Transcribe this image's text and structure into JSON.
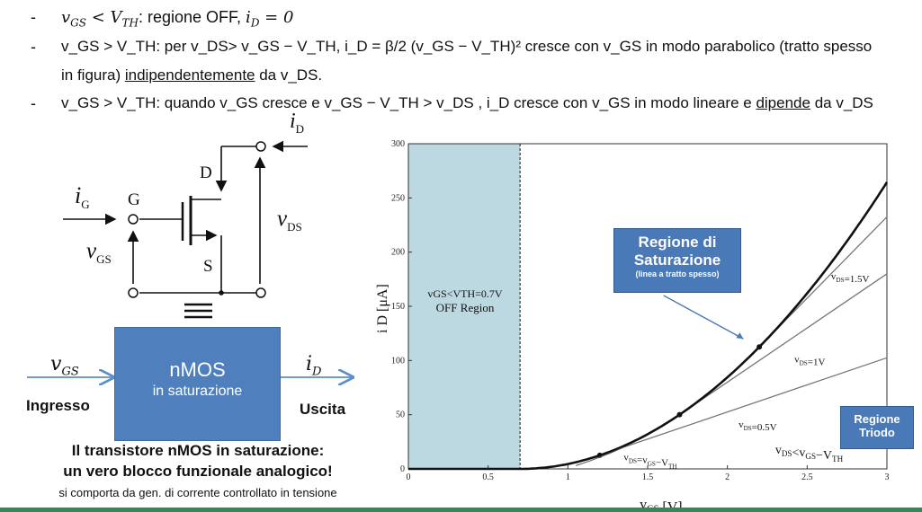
{
  "bullets": [
    {
      "dash": "-",
      "math1": "v",
      "sub1": "GS",
      "op": " < ",
      "math2": "V",
      "sub2": "TH",
      "text": ": regione OFF, ",
      "math3": "i",
      "sub3": "D",
      "tail": " = 0"
    },
    {
      "dash": "-",
      "line1": "v_GS > V_TH: per v_DS> v_GS − V_TH, i_D = β/2 (v_GS − V_TH)² cresce con v_GS in modo parabolico (tratto spesso",
      "line2_pre": "in figura) ",
      "line2_u": "indipendentemente",
      "line2_post": " da  v_DS."
    },
    {
      "dash": "-",
      "line": "v_GS > V_TH: quando v_GS cresce e v_GS − V_TH > v_DS , i_D cresce con v_GS in modo lineare e ",
      "u": "dipende",
      "post": " da  v_DS"
    }
  ],
  "circuit": {
    "iD": "i",
    "iD_sub": "D",
    "iG": "i",
    "iG_sub": "G",
    "G": "G",
    "D": "D",
    "S": "S",
    "vDS": "v",
    "vDS_sub": "DS",
    "vGS": "v",
    "vGS_sub": "GS",
    "equiv": "≡"
  },
  "block": {
    "title": "nMOS",
    "subtitle": "in saturazione",
    "in_var": "v",
    "in_sub": "GS",
    "out_var": "i",
    "out_sub": "D",
    "in_label": "Ingresso",
    "out_label": "Uscita"
  },
  "caption": {
    "line1": "Il transistore nMOS in saturazione:",
    "line2": "un vero blocco funzionale analogico!",
    "line3": "si comporta da gen. di corrente controllato in tensione"
  },
  "chart_data": {
    "type": "line",
    "xlabel": "v_GS [V]",
    "ylabel": "i_D [μA]",
    "xlim": [
      0,
      3
    ],
    "ylim": [
      0,
      300
    ],
    "xticks": [
      0,
      0.5,
      1,
      1.5,
      2,
      2.5,
      3
    ],
    "xtick_labels": [
      "0",
      "0.5",
      "1",
      "1.5",
      "2",
      "2.5",
      "3"
    ],
    "yticks": [
      0,
      50,
      100,
      150,
      200,
      250,
      300
    ],
    "ytick_labels": [
      "0",
      "50",
      "100",
      "150",
      "200",
      "250",
      "300"
    ],
    "vth": 0.7,
    "off_region": {
      "x": [
        0,
        0.7
      ],
      "label_line1": "v_GS<V_TH=0.7V",
      "label_line2": "OFF Region",
      "color": "#bcd9e2"
    },
    "series": [
      {
        "name": "saturation",
        "formula": "50*(x-0.7)^2 for x>0.7",
        "x": [
          0,
          0.7,
          1.0,
          1.5,
          2.0,
          2.5,
          3.0
        ],
        "y": [
          0,
          0,
          4.5,
          32,
          84.5,
          162,
          264.5
        ]
      },
      {
        "name": "v_DS=0.5V",
        "x": [
          1.2,
          3.0
        ],
        "y": [
          12.5,
          102.5
        ]
      },
      {
        "name": "v_DS=1V",
        "x": [
          1.7,
          3.0
        ],
        "y": [
          50,
          180
        ]
      },
      {
        "name": "v_DS=1.5V",
        "x": [
          2.2,
          3.0
        ],
        "y": [
          112.5,
          232.5
        ]
      }
    ],
    "tangent_points": [
      {
        "x": 1.2,
        "y": 12.5
      },
      {
        "x": 1.7,
        "y": 50
      },
      {
        "x": 2.2,
        "y": 112.5
      }
    ],
    "annotations": [
      {
        "text": "v_DS=1.5V",
        "x": 2.65,
        "y": 175
      },
      {
        "text": "v_DS=1V",
        "x": 2.42,
        "y": 98
      },
      {
        "text": "v_DS=0.5V",
        "x": 2.07,
        "y": 38
      },
      {
        "text": "v_DS=v_GS−V_TH",
        "x": 1.35,
        "y": 8
      },
      {
        "text": "v_DS<v_GS−V_TH",
        "x": 2.3,
        "y": 14
      }
    ],
    "callout": {
      "title_line1": "Regione di",
      "title_line2": "Saturazione",
      "sub": "(linea a tratto spesso)"
    },
    "triodo": {
      "line1": "Regione",
      "line2": "Triodo"
    }
  }
}
